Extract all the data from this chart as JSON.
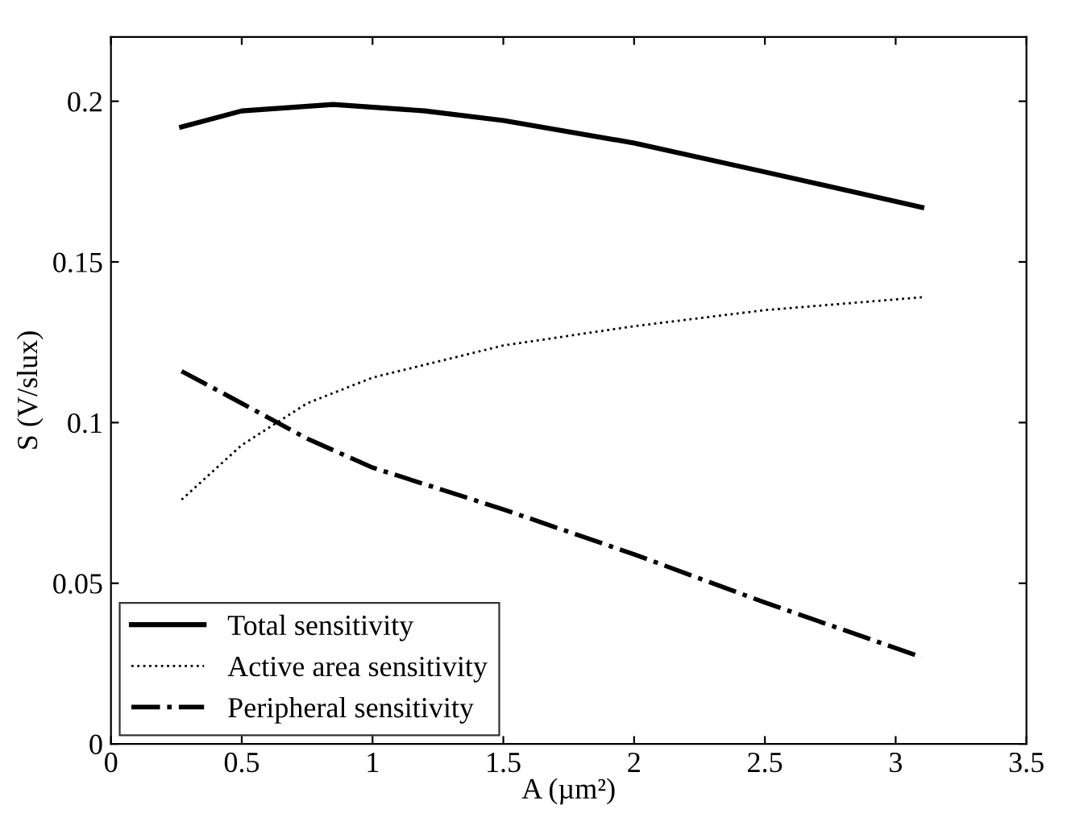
{
  "chart_data": {
    "type": "line",
    "xlabel": "A (µm²)",
    "ylabel": "S (V/slux)",
    "xlim": [
      0,
      3.5
    ],
    "xticks": [
      0,
      0.5,
      1,
      1.5,
      2,
      2.5,
      3,
      3.5
    ],
    "ylim": [
      0,
      0.22
    ],
    "yticks": [
      0,
      0.05,
      0.1,
      0.15,
      0.2
    ],
    "grid": false,
    "legend": "bottom left",
    "marker": "none",
    "series": [
      {
        "name": "Total sensitivity",
        "color": "#000000",
        "line_style": "solid",
        "x": [
          0.27,
          0.5,
          0.85,
          1.2,
          1.5,
          2,
          2.5,
          3.1
        ],
        "values": [
          0.192,
          0.197,
          0.199,
          0.197,
          0.194,
          0.187,
          0.178,
          0.167
        ]
      },
      {
        "name": "Active area sensitivity",
        "color": "#000000",
        "line_style": "dotted",
        "x": [
          0.27,
          0.5,
          0.75,
          1,
          1.5,
          2,
          2.5,
          3.1
        ],
        "values": [
          0.076,
          0.093,
          0.106,
          0.114,
          0.124,
          0.13,
          0.135,
          0.139
        ]
      },
      {
        "name": "Peripheral sensitivity",
        "color": "#000000",
        "line_style": "dashdot",
        "x": [
          0.27,
          0.5,
          0.75,
          1,
          1.5,
          2,
          2.5,
          3.1
        ],
        "values": [
          0.116,
          0.106,
          0.095,
          0.086,
          0.073,
          0.059,
          0.044,
          0.027
        ]
      }
    ]
  }
}
